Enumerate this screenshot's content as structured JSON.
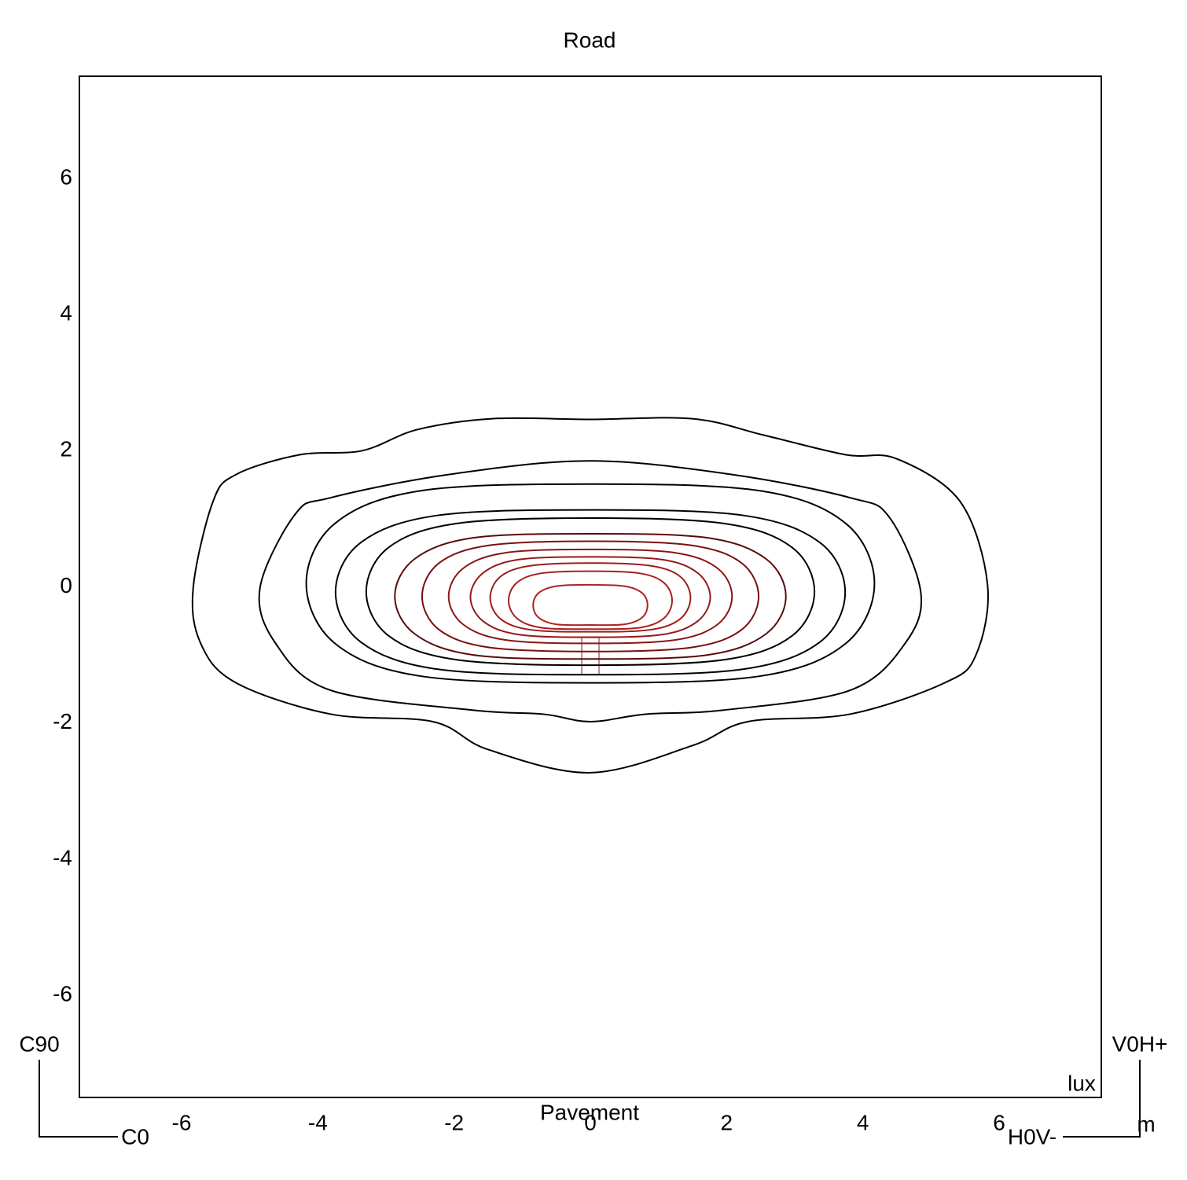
{
  "chart_data": {
    "type": "contour",
    "title": "Road",
    "xlabel": "Pavement",
    "unit_label": "lux",
    "orientation": {
      "top_left": "C90",
      "bottom_left": "C0",
      "top_right": "V0H+",
      "bottom_right": "H0V-",
      "length_unit": "m"
    },
    "xlim": [
      -7.5,
      7.5
    ],
    "ylim": [
      -7.5,
      7.5
    ],
    "xticks": [
      -6,
      -4,
      -2,
      0,
      2,
      4,
      6
    ],
    "yticks": [
      -6,
      -4,
      -2,
      0,
      2,
      4,
      6
    ],
    "series": [
      {
        "color": "#000000",
        "x": [
          -5.83,
          -5.54,
          -5.2,
          -4.27,
          -3.35,
          -2.54,
          -1.44,
          0,
          1.5,
          2.54,
          3.75,
          4.5,
          5.43,
          5.83,
          5.66,
          5.2,
          3.81,
          2.31,
          1.5,
          0,
          -1.5,
          -2.31,
          -3.81,
          -5.2,
          -5.72
        ],
        "y": [
          -0.02,
          1.25,
          1.65,
          1.94,
          2.0,
          2.31,
          2.47,
          2.46,
          2.47,
          2.23,
          1.94,
          1.88,
          1.25,
          0.03,
          -1.0,
          -1.41,
          -1.87,
          -1.98,
          -2.33,
          -2.73,
          -2.39,
          -1.98,
          -1.87,
          -1.41,
          -0.83
        ]
      },
      {
        "color": "#000000",
        "x": [
          -4.85,
          -4.33,
          -3.81,
          -2.08,
          0,
          2.08,
          3.81,
          4.39,
          4.85,
          4.62,
          3.81,
          1.96,
          0.81,
          0,
          -0.69,
          -1.73,
          -3.81,
          -4.62
        ],
        "y": [
          -0.02,
          1.07,
          1.31,
          1.65,
          1.85,
          1.65,
          1.31,
          1.02,
          -0.08,
          -0.83,
          -1.52,
          -1.81,
          -1.87,
          -1.98,
          -1.87,
          -1.81,
          -1.52,
          -0.83
        ]
      },
      {
        "color": "#000000",
        "x": [
          -4.17,
          -3.75,
          -2.5,
          0,
          2.5,
          3.75,
          4.17,
          3.75,
          2.5,
          0,
          -2.5,
          -3.75
        ],
        "y": [
          0.05,
          0.93,
          1.41,
          1.51,
          1.41,
          0.93,
          0.05,
          -0.83,
          -1.31,
          -1.41,
          -1.31,
          -0.83
        ]
      },
      {
        "color": "#000000",
        "x": [
          -3.74,
          -3.37,
          -2.24,
          0,
          2.24,
          3.37,
          3.74,
          3.37,
          2.24,
          0,
          -2.24,
          -3.37
        ],
        "y": [
          -0.08,
          0.65,
          1.05,
          1.13,
          1.05,
          0.65,
          -0.08,
          -0.81,
          -1.21,
          -1.29,
          -1.21,
          -0.81
        ]
      },
      {
        "color": "#000000",
        "x": [
          -3.29,
          -2.96,
          -1.97,
          0,
          1.97,
          2.96,
          3.29,
          2.96,
          1.97,
          0,
          -1.97,
          -2.96
        ],
        "y": [
          -0.07,
          0.58,
          0.93,
          1.01,
          0.93,
          0.58,
          -0.07,
          -0.72,
          -1.07,
          -1.15,
          -1.07,
          -0.72
        ]
      },
      {
        "color": "#5a0a0a",
        "x": [
          -2.87,
          -2.58,
          -1.72,
          0,
          1.72,
          2.58,
          2.87,
          2.58,
          1.72,
          0,
          -1.72,
          -2.58
        ],
        "y": [
          -0.14,
          0.41,
          0.72,
          0.78,
          0.72,
          0.41,
          -0.14,
          -0.69,
          -1.0,
          -1.06,
          -1.0,
          -0.69
        ]
      },
      {
        "color": "#7a1010",
        "x": [
          -2.47,
          -2.22,
          -1.48,
          0,
          1.48,
          2.22,
          2.47,
          2.22,
          1.48,
          0,
          -1.48,
          -2.22
        ],
        "y": [
          -0.14,
          0.35,
          0.61,
          0.67,
          0.61,
          0.35,
          -0.14,
          -0.63,
          -0.89,
          -0.95,
          -0.89,
          -0.63
        ]
      },
      {
        "color": "#8b1515",
        "x": [
          -2.08,
          -1.87,
          -1.25,
          0,
          1.25,
          1.87,
          2.08,
          1.87,
          1.25,
          0,
          -1.25,
          -1.87
        ],
        "y": [
          -0.14,
          0.27,
          0.5,
          0.55,
          0.5,
          0.27,
          -0.14,
          -0.55,
          -0.78,
          -0.83,
          -0.78,
          -0.55
        ]
      },
      {
        "color": "#961a1a",
        "x": [
          -1.76,
          -1.58,
          -1.06,
          0,
          1.06,
          1.58,
          1.76,
          1.58,
          1.06,
          0,
          -1.06,
          -1.58
        ],
        "y": [
          -0.15,
          0.2,
          0.4,
          0.44,
          0.4,
          0.2,
          -0.15,
          -0.5,
          -0.7,
          -0.74,
          -0.7,
          -0.5
        ]
      },
      {
        "color": "#a01c1c",
        "x": [
          -1.47,
          -1.32,
          -0.88,
          0,
          0.88,
          1.32,
          1.47,
          1.32,
          0.88,
          0,
          -0.88,
          -1.32
        ],
        "y": [
          -0.16,
          0.15,
          0.31,
          0.35,
          0.31,
          0.15,
          -0.16,
          -0.47,
          -0.63,
          -0.66,
          -0.63,
          -0.47
        ]
      },
      {
        "color": "#a82020",
        "x": [
          -1.2,
          -1.08,
          -0.72,
          0,
          0.72,
          1.08,
          1.2,
          1.08,
          0.72,
          0,
          -0.72,
          -1.08
        ],
        "y": [
          -0.2,
          0.06,
          0.2,
          0.23,
          0.2,
          0.06,
          -0.2,
          -0.46,
          -0.6,
          -0.62,
          -0.6,
          -0.46
        ]
      },
      {
        "color": "#b02222",
        "x": [
          -0.84,
          -0.76,
          -0.5,
          0,
          0.5,
          0.76,
          0.84,
          0.76,
          0.5,
          0,
          -0.5,
          -0.76
        ],
        "y": [
          -0.27,
          -0.09,
          0.01,
          0.03,
          0.01,
          -0.09,
          -0.27,
          -0.45,
          -0.55,
          -0.56,
          -0.55,
          -0.45
        ]
      }
    ]
  }
}
